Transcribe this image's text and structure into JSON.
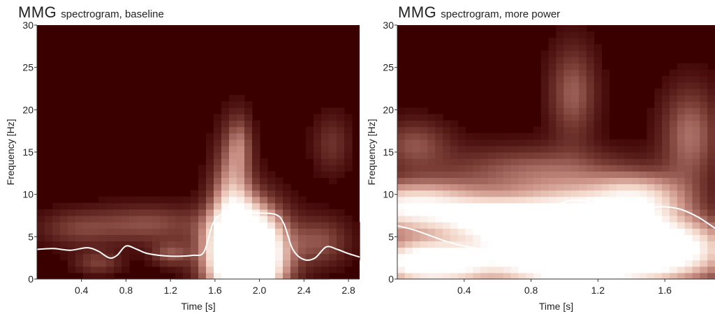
{
  "chart_data": [
    {
      "type": "heatmap",
      "title_main": "MMG",
      "title_sub": "spectrogram, baseline",
      "xlabel": "Time [s]",
      "ylabel": "Frequency [Hz]",
      "xlim": [
        0,
        2.9
      ],
      "ylim": [
        0,
        30
      ],
      "xticks": [
        0.4,
        0.8,
        1.2,
        1.6,
        2.0,
        2.4,
        2.8
      ],
      "xtick_labels": [
        "0.4",
        "0.8",
        "1.2",
        "1.6",
        "2.0",
        "2.4",
        "2.8"
      ],
      "yticks": [
        0,
        5,
        10,
        15,
        20,
        25,
        30
      ],
      "ytick_labels": [
        "0",
        "5",
        "10",
        "15",
        "20",
        "25",
        "30"
      ],
      "colormap": [
        "#3a0000",
        "#7a3e36",
        "#c98f84",
        "#f3d6c8",
        "#ffffff"
      ],
      "background_color": "#3a0000",
      "power_blobs": [
        {
          "t": 1.88,
          "f": 3.0,
          "st": 0.22,
          "sf": 3.6,
          "a": 2.2
        },
        {
          "t": 1.75,
          "f": 9.0,
          "st": 0.12,
          "sf": 5.0,
          "a": 0.55
        },
        {
          "t": 1.82,
          "f": 16.0,
          "st": 0.08,
          "sf": 2.5,
          "a": 0.3
        },
        {
          "t": 1.0,
          "f": 6.5,
          "st": 0.35,
          "sf": 1.6,
          "a": 0.3
        },
        {
          "t": 0.35,
          "f": 6.0,
          "st": 0.25,
          "sf": 1.5,
          "a": 0.22
        },
        {
          "t": 1.2,
          "f": 3.0,
          "st": 0.12,
          "sf": 1.0,
          "a": 0.3
        },
        {
          "t": 0.55,
          "f": 2.0,
          "st": 0.15,
          "sf": 1.0,
          "a": 0.25
        },
        {
          "t": 2.55,
          "f": 4.5,
          "st": 0.18,
          "sf": 2.0,
          "a": 0.3
        },
        {
          "t": 2.65,
          "f": 16.0,
          "st": 0.12,
          "sf": 2.5,
          "a": 0.2
        }
      ],
      "overlay_line": {
        "color": "#ffffff",
        "t": [
          0.0,
          0.15,
          0.3,
          0.45,
          0.55,
          0.65,
          0.72,
          0.8,
          0.9,
          1.0,
          1.2,
          1.4,
          1.5,
          1.58,
          1.65,
          1.75,
          1.85,
          2.0,
          2.15,
          2.22,
          2.3,
          2.4,
          2.5,
          2.6,
          2.7,
          2.8,
          2.9
        ],
        "f": [
          3.5,
          3.6,
          3.4,
          3.7,
          3.3,
          2.5,
          2.8,
          3.9,
          3.5,
          3.0,
          2.7,
          2.8,
          3.2,
          6.5,
          7.6,
          7.8,
          7.8,
          7.8,
          7.6,
          6.5,
          3.5,
          2.3,
          2.5,
          3.8,
          3.5,
          3.0,
          2.6
        ]
      }
    },
    {
      "type": "heatmap",
      "title_main": "MMG",
      "title_sub": "spectrogram, more power",
      "xlabel": "Time [s]",
      "ylabel": "Frequency [Hz]",
      "xlim": [
        0,
        1.9
      ],
      "ylim": [
        0,
        30
      ],
      "xticks": [
        0.4,
        0.8,
        1.2,
        1.6
      ],
      "xtick_labels": [
        "0.4",
        "0.8",
        "1.2",
        "1.6"
      ],
      "yticks": [
        0,
        5,
        10,
        15,
        20,
        25,
        30
      ],
      "ytick_labels": [
        "0",
        "5",
        "10",
        "15",
        "20",
        "25",
        "30"
      ],
      "colormap": [
        "#3a0000",
        "#7a3e36",
        "#c98f84",
        "#f3d6c8",
        "#ffffff"
      ],
      "background_color": "#3a0000",
      "power_blobs": [
        {
          "t": 1.0,
          "f": 4.5,
          "st": 0.3,
          "sf": 3.5,
          "a": 2.0
        },
        {
          "t": 1.55,
          "f": 3.5,
          "st": 0.3,
          "sf": 2.5,
          "a": 1.3
        },
        {
          "t": 0.2,
          "f": 2.0,
          "st": 0.25,
          "sf": 1.8,
          "a": 1.3
        },
        {
          "t": 0.1,
          "f": 8.5,
          "st": 0.3,
          "sf": 2.0,
          "a": 1.0
        },
        {
          "t": 0.55,
          "f": 7.0,
          "st": 0.2,
          "sf": 1.5,
          "a": 0.6
        },
        {
          "t": 1.45,
          "f": 9.5,
          "st": 0.2,
          "sf": 2.0,
          "a": 0.7
        },
        {
          "t": 1.05,
          "f": 22.0,
          "st": 0.1,
          "sf": 4.0,
          "a": 0.35
        },
        {
          "t": 1.75,
          "f": 17.0,
          "st": 0.12,
          "sf": 4.0,
          "a": 0.4
        },
        {
          "t": 0.1,
          "f": 16.0,
          "st": 0.15,
          "sf": 2.0,
          "a": 0.3
        },
        {
          "t": 0.8,
          "f": 13.0,
          "st": 0.4,
          "sf": 2.0,
          "a": 0.3
        }
      ],
      "overlay_line": {
        "color": "#ffffff",
        "t": [
          0.0,
          0.1,
          0.2,
          0.3,
          0.4,
          0.5,
          0.6,
          0.7,
          0.8,
          0.9,
          1.0,
          1.08,
          1.15,
          1.22,
          1.3,
          1.38,
          1.45,
          1.55,
          1.62,
          1.7,
          1.8,
          1.9
        ],
        "f": [
          6.3,
          5.8,
          5.1,
          4.4,
          3.9,
          3.6,
          3.8,
          4.8,
          6.5,
          8.1,
          9.1,
          9.3,
          9.0,
          8.0,
          6.9,
          7.4,
          8.0,
          8.5,
          8.5,
          8.2,
          7.3,
          6.0
        ]
      }
    }
  ]
}
